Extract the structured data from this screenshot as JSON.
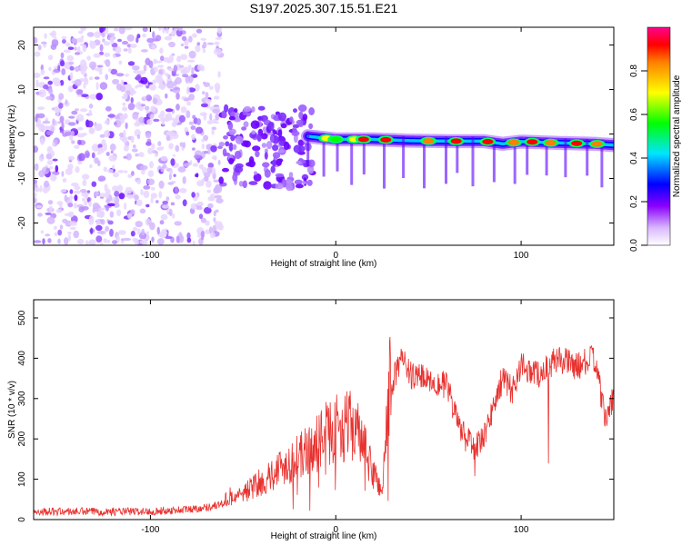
{
  "title": "S197.2025.307.15.51.E21",
  "chart_data": [
    {
      "type": "heatmap",
      "xlabel": "Height of straight line (km)",
      "ylabel": "Frequency (Hz)",
      "xlim": [
        -163,
        150
      ],
      "ylim": [
        -25,
        24
      ],
      "xticks": [
        -100,
        0,
        100
      ],
      "yticks": [
        -20,
        -10,
        0,
        10,
        20
      ],
      "colorbar": {
        "label": "Normalized spectral amplitude",
        "range": [
          0,
          1
        ],
        "ticks": [
          "0.0",
          "0.2",
          "0.4",
          "0.6",
          "0.8"
        ]
      },
      "ridge": {
        "x": [
          -15,
          0,
          20,
          40,
          60,
          80,
          90,
          100,
          120,
          140,
          150
        ],
        "freq": [
          -0.5,
          -1.2,
          -1.2,
          -1.5,
          -1.6,
          -1.6,
          -2.2,
          -1.7,
          -2.0,
          -2.2,
          -2.5
        ]
      },
      "hotspots": [
        {
          "x": -5,
          "amp": 0.55
        },
        {
          "x": 0,
          "amp": 0.45
        },
        {
          "x": 10,
          "amp": 0.6
        },
        {
          "x": 15,
          "amp": 0.9
        },
        {
          "x": 27,
          "amp": 0.85
        },
        {
          "x": 50,
          "amp": 0.7
        },
        {
          "x": 65,
          "amp": 0.95
        },
        {
          "x": 82,
          "amp": 0.9
        },
        {
          "x": 96,
          "amp": 0.75
        },
        {
          "x": 106,
          "amp": 0.9
        },
        {
          "x": 116,
          "amp": 0.7
        },
        {
          "x": 130,
          "amp": 0.95
        },
        {
          "x": 141,
          "amp": 0.8
        }
      ]
    },
    {
      "type": "line",
      "xlabel": "Height of straight line (km)",
      "ylabel": "SNR (10 * v/v)",
      "xlim": [
        -163,
        150
      ],
      "ylim": [
        0,
        545
      ],
      "xticks": [
        -100,
        0,
        100
      ],
      "yticks": [
        0,
        100,
        200,
        300,
        400,
        500
      ],
      "series": [
        {
          "name": "SNR",
          "color": "#e8312e",
          "x": [
            -163,
            -140,
            -120,
            -100,
            -80,
            -70,
            -60,
            -50,
            -40,
            -30,
            -20,
            -10,
            -5,
            0,
            10,
            20,
            25,
            30,
            35,
            40,
            50,
            60,
            65,
            70,
            75,
            80,
            85,
            90,
            95,
            100,
            110,
            120,
            130,
            140,
            145,
            150
          ],
          "y": [
            20,
            20,
            20,
            20,
            25,
            30,
            40,
            55,
            80,
            110,
            130,
            160,
            180,
            190,
            200,
            100,
            60,
            330,
            400,
            360,
            350,
            330,
            250,
            200,
            180,
            200,
            280,
            350,
            320,
            380,
            360,
            400,
            380,
            400,
            250,
            300
          ]
        }
      ]
    }
  ]
}
